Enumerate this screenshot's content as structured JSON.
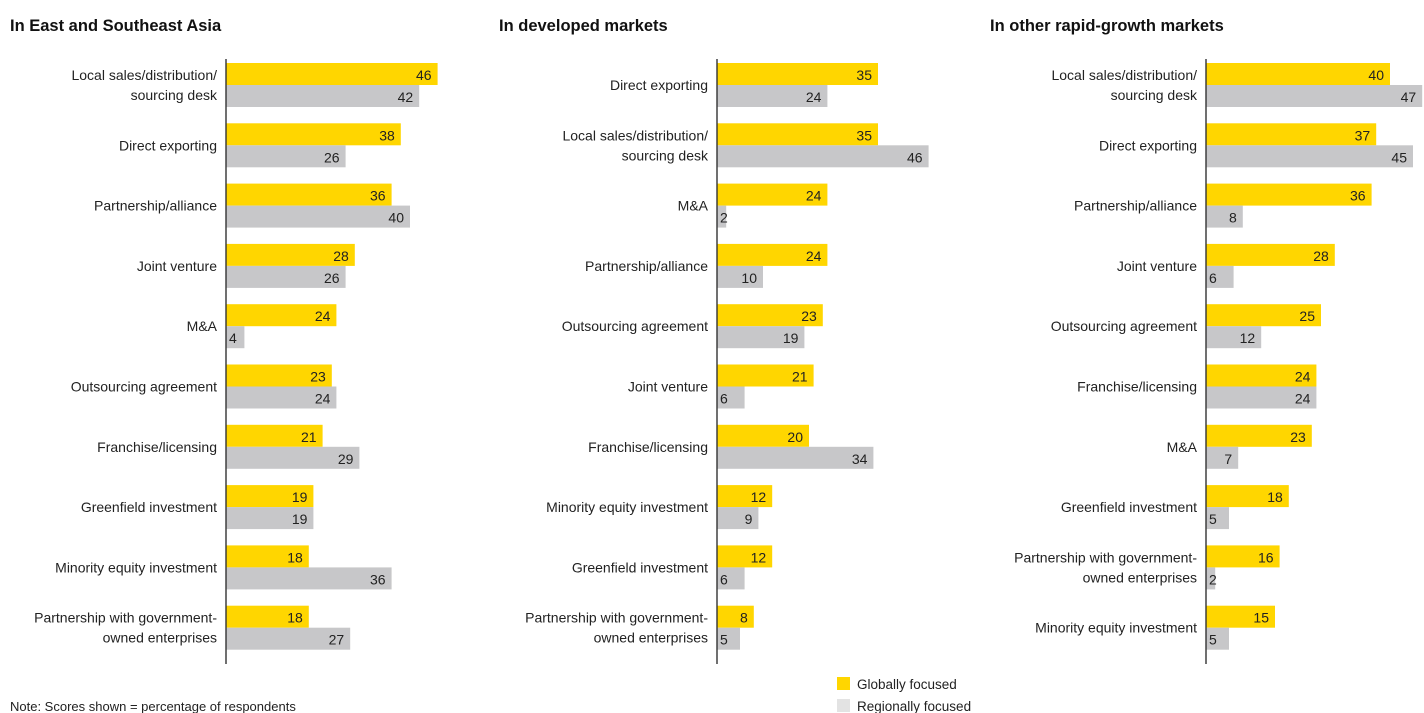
{
  "note": "Note: Scores shown = percentage of respondents",
  "legend": [
    {
      "label": "Globally focused",
      "color": "#ffd600"
    },
    {
      "label": "Regionally focused",
      "color": "#e3e3e3"
    }
  ],
  "colors": {
    "global": "#ffd600",
    "regional": "#c7c7c9",
    "axis": "#333333"
  },
  "chart_data": [
    {
      "type": "bar",
      "orientation": "horizontal",
      "title": "In East and Southeast Asia",
      "categories": [
        "Local sales/distribution/\nsourcing desk",
        "Direct exporting",
        "Partnership/alliance",
        "Joint venture",
        "M&A",
        "Outsourcing agreement",
        "Franchise/licensing",
        "Greenfield investment",
        "Minority equity investment",
        "Partnership with government-\nowned enterprises"
      ],
      "series": [
        {
          "name": "Globally focused",
          "values": [
            46,
            38,
            36,
            28,
            24,
            23,
            21,
            19,
            18,
            18
          ]
        },
        {
          "name": "Regionally focused",
          "values": [
            42,
            26,
            40,
            26,
            4,
            24,
            29,
            19,
            36,
            27
          ]
        }
      ]
    },
    {
      "type": "bar",
      "orientation": "horizontal",
      "title": "In developed markets",
      "categories": [
        "Direct exporting",
        "Local sales/distribution/\nsourcing desk",
        "M&A",
        "Partnership/alliance",
        "Outsourcing agreement",
        "Joint venture",
        "Franchise/licensing",
        "Minority equity investment",
        "Greenfield investment",
        "Partnership with government-\nowned enterprises"
      ],
      "series": [
        {
          "name": "Globally focused",
          "values": [
            35,
            35,
            24,
            24,
            23,
            21,
            20,
            12,
            12,
            8
          ]
        },
        {
          "name": "Regionally focused",
          "values": [
            24,
            46,
            2,
            10,
            19,
            6,
            34,
            9,
            6,
            5
          ]
        }
      ]
    },
    {
      "type": "bar",
      "orientation": "horizontal",
      "title": "In other rapid-growth markets",
      "categories": [
        "Local sales/distribution/\nsourcing desk",
        "Direct exporting",
        "Partnership/alliance",
        "Joint venture",
        "Outsourcing agreement",
        "Franchise/licensing",
        "M&A",
        "Greenfield investment",
        "Partnership with government-\nowned enterprises",
        "Minority equity investment"
      ],
      "series": [
        {
          "name": "Globally focused",
          "values": [
            40,
            37,
            36,
            28,
            25,
            24,
            23,
            18,
            16,
            15
          ]
        },
        {
          "name": "Regionally focused",
          "values": [
            47,
            45,
            8,
            6,
            12,
            24,
            7,
            5,
            2,
            5
          ]
        }
      ]
    }
  ]
}
